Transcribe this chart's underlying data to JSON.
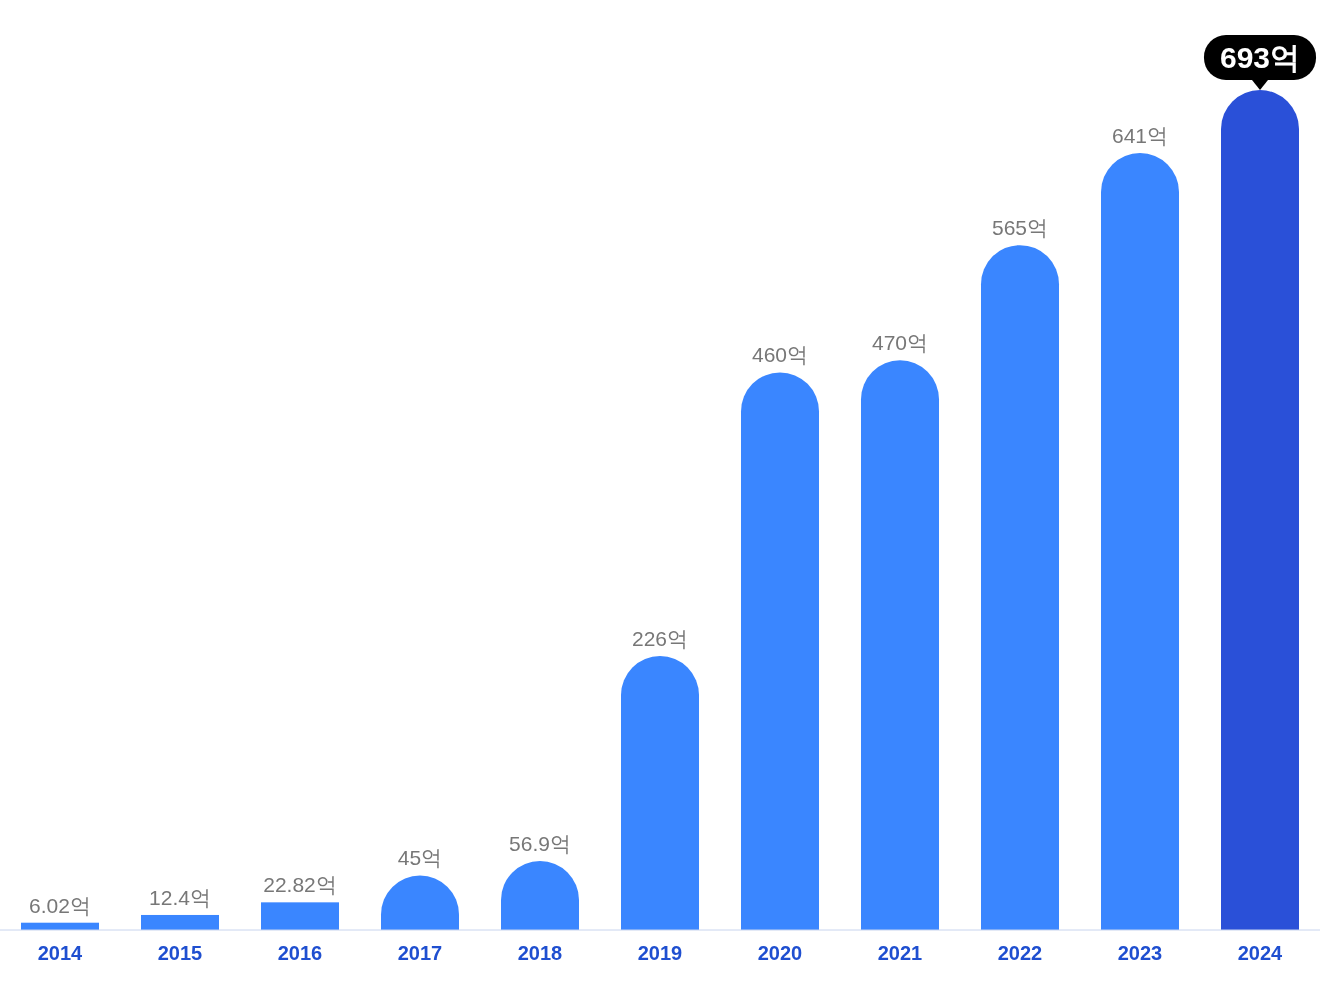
{
  "chart_data": {
    "type": "bar",
    "categories": [
      "2014",
      "2015",
      "2016",
      "2017",
      "2018",
      "2019",
      "2020",
      "2021",
      "2022",
      "2023",
      "2024"
    ],
    "values": [
      6.02,
      12.4,
      22.82,
      45,
      56.9,
      226,
      460,
      470,
      565,
      641,
      693
    ],
    "value_labels": [
      "6.02억",
      "12.4억",
      "22.82억",
      "45억",
      "56.9억",
      "226억",
      "460억",
      "470억",
      "565억",
      "641억",
      "693억"
    ],
    "colors": [
      "#3a86ff",
      "#3a86ff",
      "#3a86ff",
      "#3a86ff",
      "#3a86ff",
      "#3a86ff",
      "#3a86ff",
      "#3a86ff",
      "#3a86ff",
      "#3a86ff",
      "#2a50d8"
    ]
  }
}
